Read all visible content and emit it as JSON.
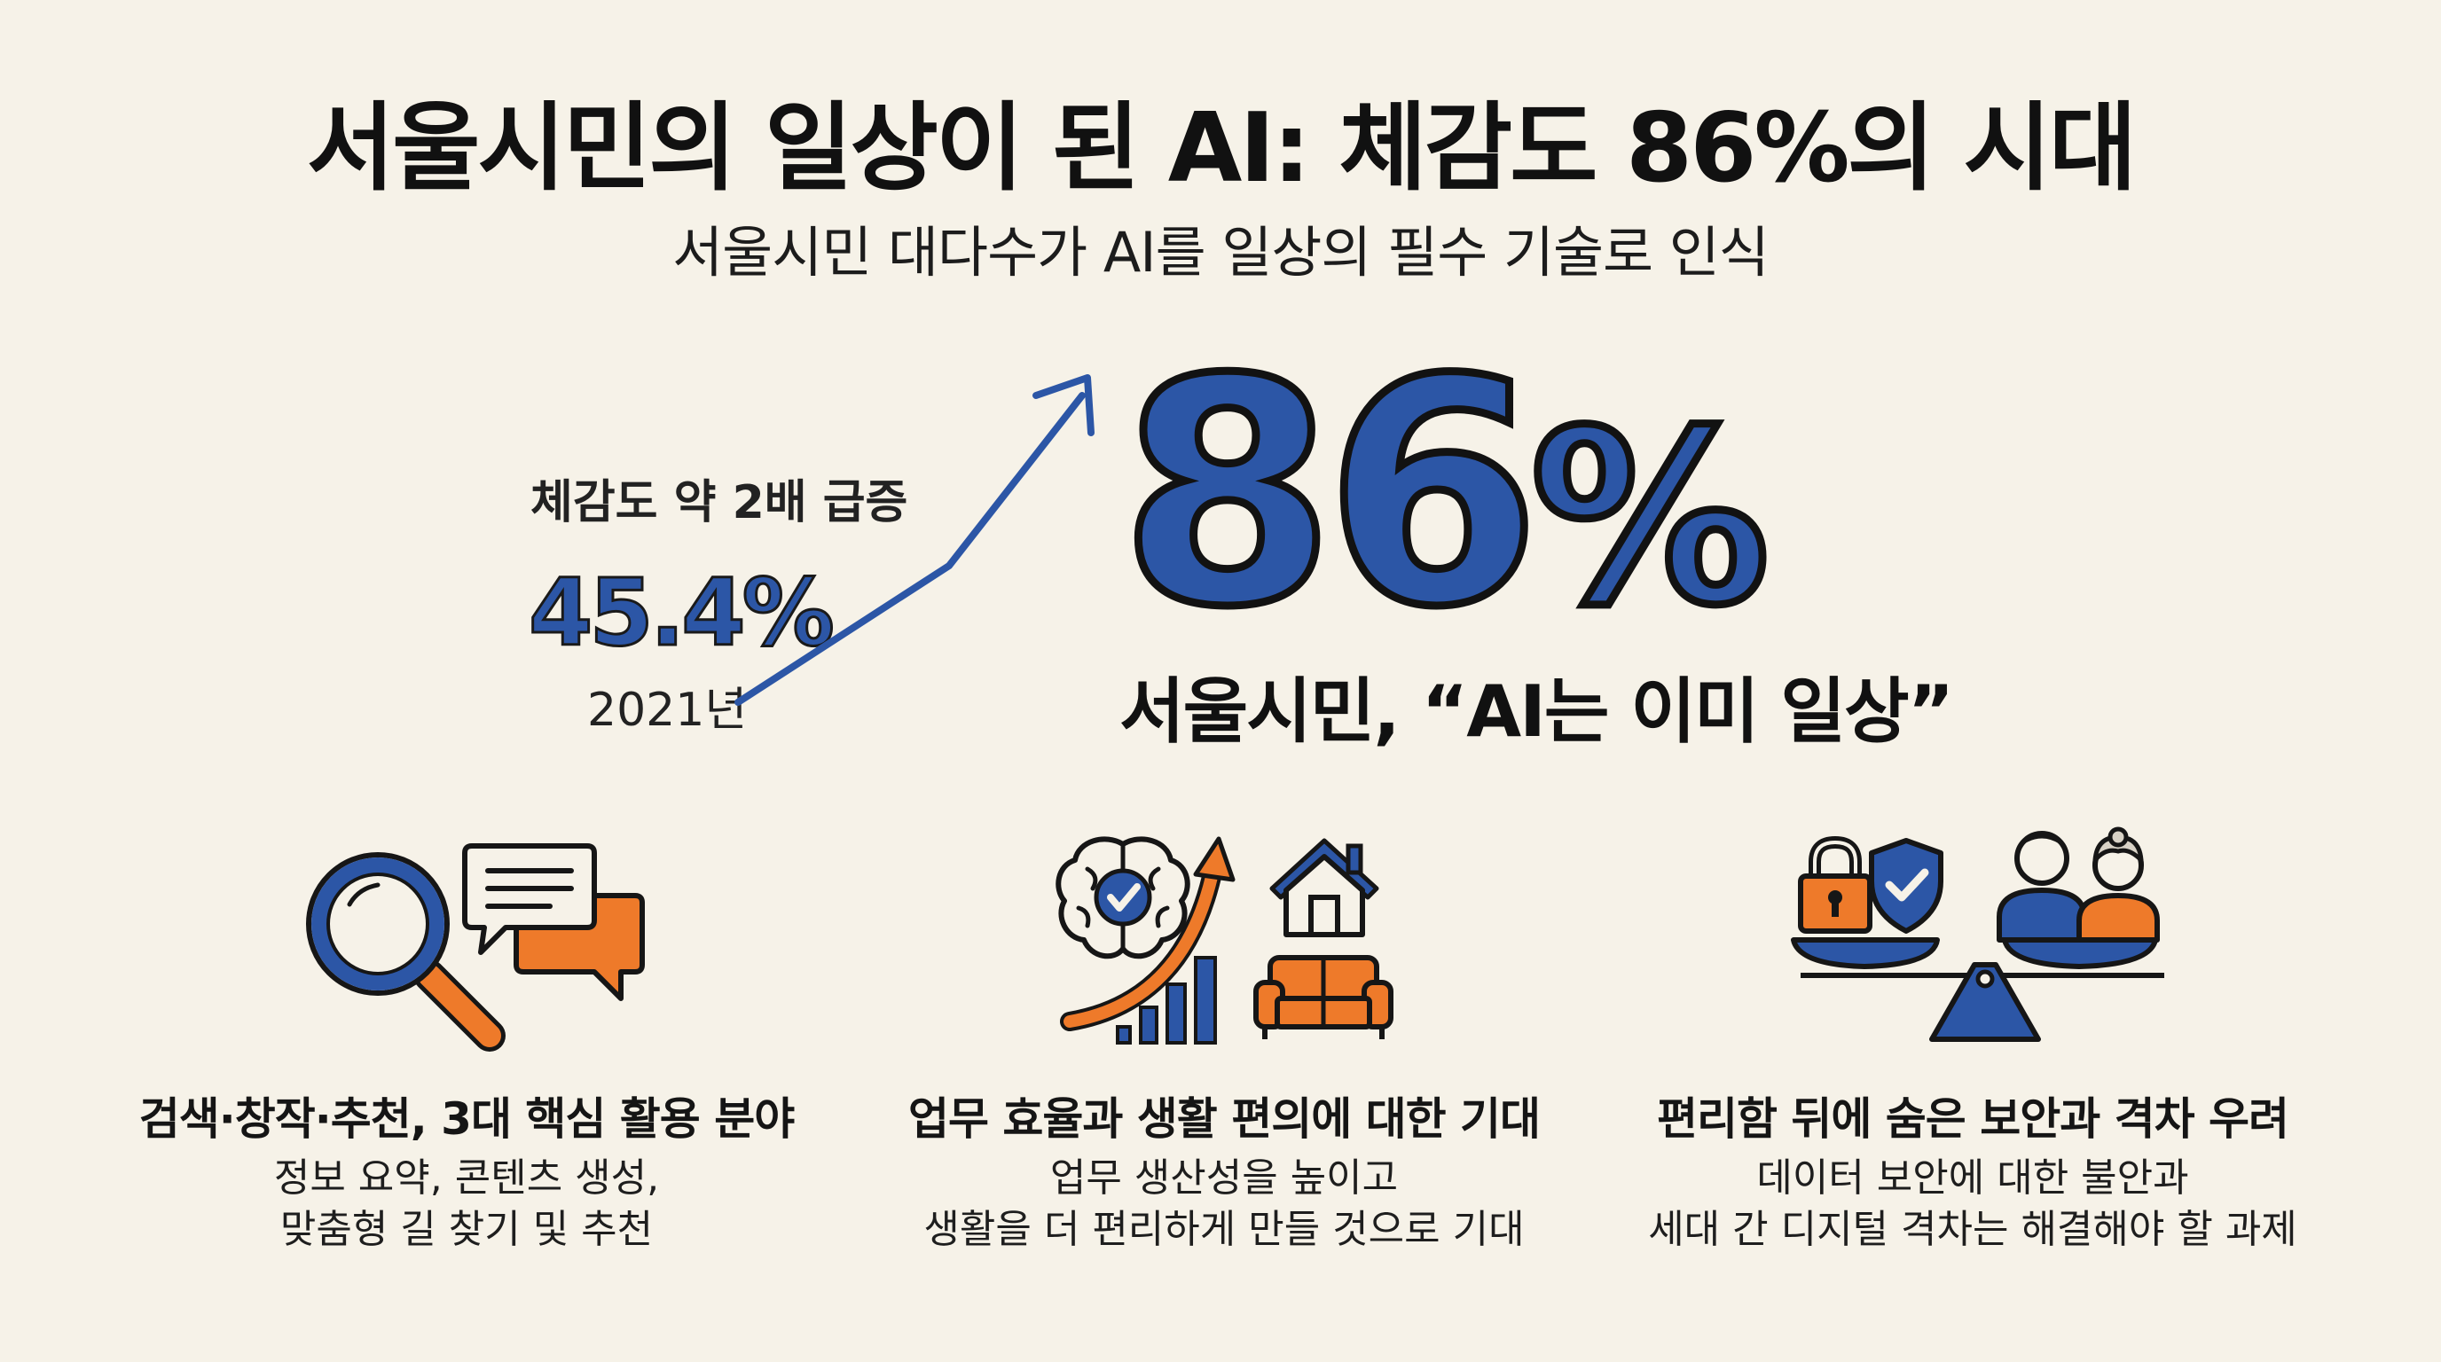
{
  "header": {
    "title": "서울시민의 일상이 된 AI: 체감도 86%의 시대",
    "subtitle": "서울시민 대다수가 AI를 일상의 필수 기술로 인식"
  },
  "stats": {
    "surge_label": "체감도 약 2배 급증",
    "previous_value": "45.4%",
    "previous_year": "2021년",
    "current_value": "86",
    "current_unit": "%",
    "current_progress_percent": 86,
    "quote": "서울시민, “AI는 이미 일상”"
  },
  "cards": [
    {
      "title": "검색·창작·추천, 3대 핵심 활용 분야",
      "desc_line1": "정보 요약, 콘텐츠 생성,",
      "desc_line2": "맞춤형 길 찾기 및 추천",
      "icons": [
        "magnifier-icon",
        "chat-bubbles-icon"
      ]
    },
    {
      "title": "업무 효율과 생활 편의에 대한 기대",
      "desc_line1": "업무 생산성을 높이고",
      "desc_line2": "생활을 더 편리하게 만들 것으로 기대",
      "icons": [
        "brain-icon",
        "growth-chart-icon",
        "house-icon",
        "sofa-icon"
      ]
    },
    {
      "title": "편리함 뒤에 숨은 보안과 격차 우려",
      "desc_line1": "데이터 보안에 대한 불안과",
      "desc_line2": "세대 간 디지털 격차는 해결해야 할 과제",
      "icons": [
        "padlock-icon",
        "shield-icon",
        "balance-scale-icon",
        "people-icon"
      ]
    }
  ],
  "colors": {
    "background": "#f6f2e8",
    "blue": "#2c56a6",
    "orange": "#ee7a2a",
    "ink": "#161616"
  }
}
